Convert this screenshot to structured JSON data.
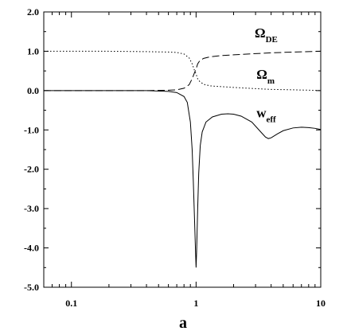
{
  "chart_data": {
    "type": "line",
    "title": "",
    "xlabel": "a",
    "ylabel": "",
    "xscale": "log",
    "xlim": [
      0.06,
      10
    ],
    "ylim": [
      -5.0,
      2.0
    ],
    "grid": false,
    "legend": "none",
    "x_ticks": [
      {
        "value": 0.1,
        "label": "0.1"
      },
      {
        "value": 1,
        "label": "1"
      },
      {
        "value": 10,
        "label": "10"
      }
    ],
    "y_ticks": [
      {
        "value": 2.0,
        "label": "2.0"
      },
      {
        "value": 1.0,
        "label": "1.0"
      },
      {
        "value": 0.0,
        "label": "0.0"
      },
      {
        "value": -1.0,
        "label": "-1.0"
      },
      {
        "value": -2.0,
        "label": "-2.0"
      },
      {
        "value": -3.0,
        "label": "-3.0"
      },
      {
        "value": -4.0,
        "label": "-4.0"
      },
      {
        "value": -5.0,
        "label": "-5.0"
      }
    ],
    "series": [
      {
        "label_main": "Ω",
        "label_sub": "DE",
        "style": "dashed",
        "label_at": {
          "x": 2.95,
          "y": 1.35
        },
        "points": [
          [
            0.06,
            0.0
          ],
          [
            0.1,
            0.0
          ],
          [
            0.2,
            0.0
          ],
          [
            0.4,
            0.0
          ],
          [
            0.6,
            0.01
          ],
          [
            0.7,
            0.02
          ],
          [
            0.8,
            0.06
          ],
          [
            0.88,
            0.15
          ],
          [
            0.93,
            0.3
          ],
          [
            0.97,
            0.45
          ],
          [
            1.0,
            0.55
          ],
          [
            1.03,
            0.68
          ],
          [
            1.07,
            0.76
          ],
          [
            1.15,
            0.82
          ],
          [
            1.3,
            0.86
          ],
          [
            1.6,
            0.89
          ],
          [
            2.0,
            0.91
          ],
          [
            3.0,
            0.94
          ],
          [
            4.0,
            0.96
          ],
          [
            6.0,
            0.98
          ],
          [
            8.0,
            0.99
          ],
          [
            10.0,
            1.0
          ]
        ]
      },
      {
        "label_main": "Ω",
        "label_sub": "m",
        "style": "dotted",
        "label_at": {
          "x": 3.05,
          "y": 0.3
        },
        "points": [
          [
            0.06,
            1.0
          ],
          [
            0.1,
            1.0
          ],
          [
            0.2,
            1.0
          ],
          [
            0.4,
            0.99
          ],
          [
            0.6,
            0.98
          ],
          [
            0.7,
            0.97
          ],
          [
            0.8,
            0.93
          ],
          [
            0.88,
            0.83
          ],
          [
            0.93,
            0.68
          ],
          [
            0.97,
            0.52
          ],
          [
            1.0,
            0.42
          ],
          [
            1.03,
            0.3
          ],
          [
            1.07,
            0.23
          ],
          [
            1.15,
            0.16
          ],
          [
            1.3,
            0.12
          ],
          [
            1.6,
            0.1
          ],
          [
            2.0,
            0.08
          ],
          [
            3.0,
            0.05
          ],
          [
            4.0,
            0.03
          ],
          [
            6.0,
            0.02
          ],
          [
            8.0,
            0.01
          ],
          [
            10.0,
            0.0
          ]
        ]
      },
      {
        "label_main": "w",
        "label_sub": "eff",
        "style": "solid",
        "label_at": {
          "x": 3.05,
          "y": -0.68
        },
        "points": [
          [
            0.06,
            0.0
          ],
          [
            0.1,
            0.0
          ],
          [
            0.2,
            0.0
          ],
          [
            0.4,
            0.0
          ],
          [
            0.6,
            -0.02
          ],
          [
            0.7,
            -0.05
          ],
          [
            0.8,
            -0.15
          ],
          [
            0.85,
            -0.3
          ],
          [
            0.9,
            -0.8
          ],
          [
            0.93,
            -1.5
          ],
          [
            0.95,
            -2.3
          ],
          [
            0.97,
            -3.2
          ],
          [
            0.99,
            -4.1
          ],
          [
            1.0,
            -4.5
          ],
          [
            1.01,
            -4.1
          ],
          [
            1.03,
            -3.0
          ],
          [
            1.05,
            -2.1
          ],
          [
            1.08,
            -1.4
          ],
          [
            1.12,
            -1.05
          ],
          [
            1.2,
            -0.8
          ],
          [
            1.35,
            -0.67
          ],
          [
            1.6,
            -0.6
          ],
          [
            1.8,
            -0.59
          ],
          [
            2.0,
            -0.6
          ],
          [
            2.3,
            -0.65
          ],
          [
            2.8,
            -0.8
          ],
          [
            3.3,
            -1.05
          ],
          [
            3.6,
            -1.18
          ],
          [
            3.8,
            -1.22
          ],
          [
            4.0,
            -1.2
          ],
          [
            4.5,
            -1.1
          ],
          [
            5.0,
            -1.02
          ],
          [
            6.0,
            -0.95
          ],
          [
            7.0,
            -0.93
          ],
          [
            8.0,
            -0.94
          ],
          [
            9.0,
            -0.96
          ],
          [
            10.0,
            -0.99
          ]
        ]
      }
    ]
  }
}
